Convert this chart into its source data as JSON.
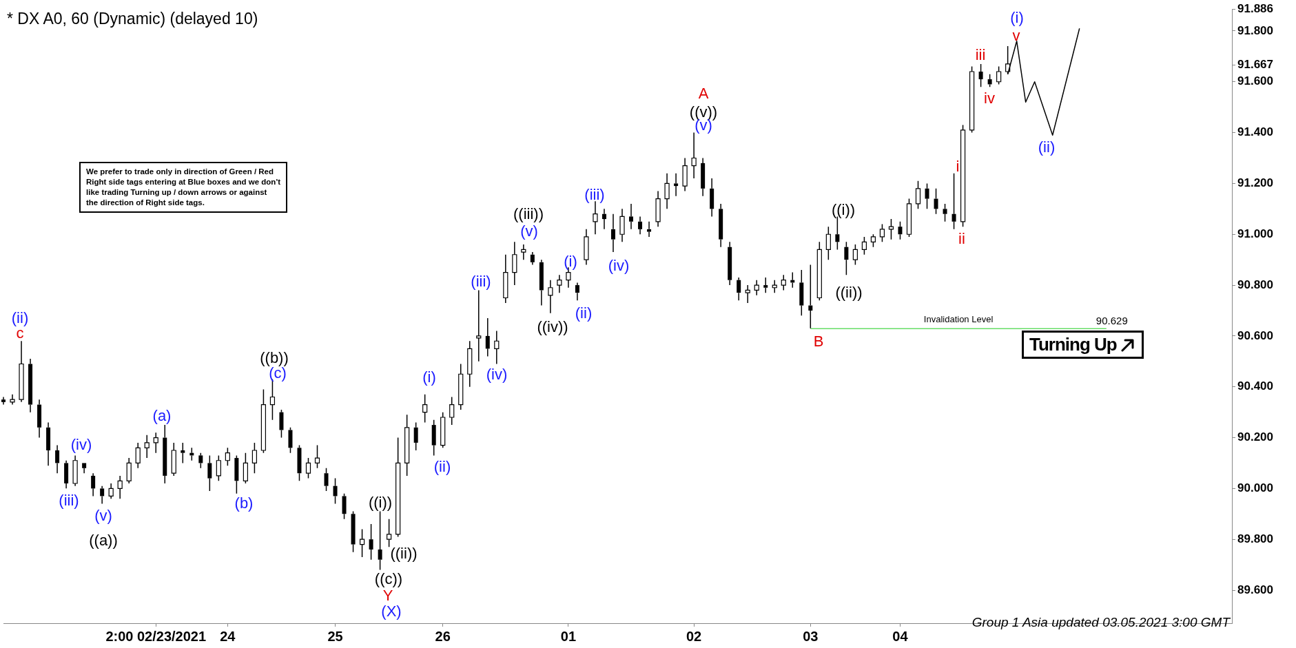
{
  "chart_data": {
    "type": "candlestick",
    "title": "* DX A0, 60 (Dynamic) (delayed 10)",
    "categories": [
      null,
      null,
      null,
      null,
      null,
      null,
      null,
      null,
      null,
      null,
      null,
      null,
      null,
      null,
      null,
      null,
      null,
      "2:00 02/23/2021",
      null,
      null,
      null,
      null,
      null,
      null,
      null,
      "24",
      null,
      null,
      null,
      null,
      null,
      null,
      null,
      null,
      null,
      null,
      null,
      "25",
      null,
      null,
      null,
      null,
      null,
      null,
      null,
      null,
      null,
      null,
      null,
      "26",
      null,
      null,
      null,
      null,
      null,
      null,
      null,
      null,
      null,
      null,
      null,
      null,
      null,
      "01",
      null,
      null,
      null,
      null,
      null,
      null,
      null,
      null,
      null,
      null,
      null,
      null,
      null,
      "02",
      null,
      null,
      null,
      null,
      null,
      null,
      null,
      null,
      null,
      null,
      null,
      null,
      "03",
      null,
      null,
      null,
      null,
      null,
      null,
      null,
      null,
      null,
      "04",
      null,
      null,
      null,
      null,
      null,
      null,
      null,
      null,
      null,
      null,
      null,
      null,
      null,
      null,
      null,
      null,
      null,
      null,
      null,
      null,
      null,
      null,
      null,
      null,
      null,
      null,
      null,
      null,
      null,
      null,
      null,
      null,
      null,
      null,
      null,
      null,
      null
    ],
    "ylim": [
      89.47,
      91.886
    ],
    "yticks": [
      {
        "value": 89.6,
        "label": "89.600"
      },
      {
        "value": 89.8,
        "label": "89.800"
      },
      {
        "value": 90,
        "label": "90.000"
      },
      {
        "value": 90.2,
        "label": "90.200"
      },
      {
        "value": 90.4,
        "label": "90.400"
      },
      {
        "value": 90.6,
        "label": "90.600"
      },
      {
        "value": 90.8,
        "label": "90.800"
      },
      {
        "value": 91,
        "label": "91.000"
      },
      {
        "value": 91.2,
        "label": "91.200"
      },
      {
        "value": 91.4,
        "label": "91.400"
      },
      {
        "value": 91.6,
        "label": "91.600"
      },
      {
        "value": 91.667,
        "label": "91.667"
      },
      {
        "value": 91.8,
        "label": "91.800"
      },
      {
        "value": 91.886,
        "label": "91.886"
      }
    ],
    "series": [
      {
        "color": "#000000",
        "ohlc": [
          [
            90.35,
            90.36,
            90.33,
            90.34
          ],
          [
            90.34,
            90.37,
            90.33,
            90.35
          ],
          [
            90.35,
            90.58,
            90.34,
            90.49
          ],
          [
            90.49,
            90.51,
            90.3,
            90.33
          ],
          [
            90.33,
            90.35,
            90.2,
            90.24
          ],
          [
            90.24,
            90.26,
            90.09,
            90.15
          ],
          [
            90.15,
            90.17,
            90.06,
            90.1
          ],
          [
            90.1,
            90.11,
            90,
            90.02
          ],
          [
            90.02,
            90.13,
            90.01,
            90.11
          ],
          [
            90.1,
            90.1,
            90.06,
            90.08
          ],
          [
            90.05,
            90.06,
            89.97,
            90
          ],
          [
            90,
            90.01,
            89.94,
            89.97
          ],
          [
            89.97,
            90.02,
            89.96,
            90
          ],
          [
            90,
            90.05,
            89.96,
            90.03
          ],
          [
            90.03,
            90.12,
            90.02,
            90.1
          ],
          [
            90.1,
            90.18,
            90.08,
            90.16
          ],
          [
            90.16,
            90.21,
            90.12,
            90.18
          ],
          [
            90.18,
            90.22,
            90.14,
            90.2
          ],
          [
            90.2,
            90.25,
            90.02,
            90.05
          ],
          [
            90.06,
            90.18,
            90.05,
            90.15
          ],
          [
            90.15,
            90.18,
            90.1,
            90.14
          ],
          [
            90.14,
            90.16,
            90.11,
            90.13
          ],
          [
            90.13,
            90.14,
            90.08,
            90.1
          ],
          [
            90.1,
            90.13,
            89.99,
            90.04
          ],
          [
            90.05,
            90.13,
            90.03,
            90.11
          ],
          [
            90.11,
            90.16,
            90.09,
            90.14
          ],
          [
            90.12,
            90.13,
            89.98,
            90.03
          ],
          [
            90.03,
            90.14,
            90.02,
            90.1
          ],
          [
            90.1,
            90.18,
            90.06,
            90.15
          ],
          [
            90.15,
            90.39,
            90.14,
            90.33
          ],
          [
            90.33,
            90.43,
            90.27,
            90.36
          ],
          [
            90.3,
            90.31,
            90.2,
            90.23
          ],
          [
            90.23,
            90.24,
            90.14,
            90.16
          ],
          [
            90.16,
            90.17,
            90.03,
            90.06
          ],
          [
            90.06,
            90.12,
            90.04,
            90.1
          ],
          [
            90.1,
            90.17,
            90.08,
            90.12
          ],
          [
            90.06,
            90.08,
            89.99,
            90.01
          ],
          [
            90.01,
            90.04,
            89.94,
            89.97
          ],
          [
            89.97,
            89.98,
            89.88,
            89.9
          ],
          [
            89.9,
            89.91,
            89.75,
            89.78
          ],
          [
            89.78,
            89.84,
            89.73,
            89.8
          ],
          [
            89.8,
            89.86,
            89.72,
            89.76
          ],
          [
            89.76,
            89.91,
            89.68,
            89.72
          ],
          [
            89.8,
            89.88,
            89.77,
            89.82
          ],
          [
            89.82,
            90.2,
            89.81,
            90.1
          ],
          [
            90.1,
            90.29,
            90.05,
            90.24
          ],
          [
            90.24,
            90.26,
            90.15,
            90.18
          ],
          [
            90.3,
            90.37,
            90.26,
            90.33
          ],
          [
            90.25,
            90.27,
            90.13,
            90.17
          ],
          [
            90.17,
            90.3,
            90.16,
            90.28
          ],
          [
            90.28,
            90.36,
            90.25,
            90.33
          ],
          [
            90.33,
            90.49,
            90.31,
            90.45
          ],
          [
            90.45,
            90.58,
            90.4,
            90.55
          ],
          [
            90.6,
            90.78,
            90.5,
            90.6
          ],
          [
            90.6,
            90.67,
            90.52,
            90.55
          ],
          [
            90.55,
            90.62,
            90.49,
            90.58
          ],
          [
            90.75,
            90.92,
            90.73,
            90.85
          ],
          [
            90.85,
            90.97,
            90.8,
            90.92
          ],
          [
            90.93,
            90.96,
            90.9,
            90.94
          ],
          [
            90.92,
            90.93,
            90.88,
            90.89
          ],
          [
            90.89,
            90.9,
            90.72,
            90.78
          ],
          [
            90.76,
            90.82,
            90.69,
            90.79
          ],
          [
            90.8,
            90.84,
            90.77,
            90.82
          ],
          [
            90.82,
            90.87,
            90.79,
            90.85
          ],
          [
            90.8,
            90.81,
            90.74,
            90.77
          ],
          [
            90.9,
            91.02,
            90.88,
            90.99
          ],
          [
            91.05,
            91.13,
            91,
            91.08
          ],
          [
            91.08,
            91.1,
            91.02,
            91.06
          ],
          [
            91.02,
            91.08,
            90.93,
            90.98
          ],
          [
            91,
            91.1,
            90.97,
            91.07
          ],
          [
            91.07,
            91.12,
            91.02,
            91.05
          ],
          [
            91.05,
            91.07,
            91,
            91.02
          ],
          [
            91.02,
            91.05,
            90.99,
            91.01
          ],
          [
            91.05,
            91.17,
            91.03,
            91.14
          ],
          [
            91.14,
            91.24,
            91.1,
            91.2
          ],
          [
            91.2,
            91.24,
            91.15,
            91.19
          ],
          [
            91.19,
            91.3,
            91.17,
            91.27
          ],
          [
            91.27,
            91.4,
            91.22,
            91.3
          ],
          [
            91.28,
            91.3,
            91.15,
            91.18
          ],
          [
            91.18,
            91.22,
            91.07,
            91.1
          ],
          [
            91.1,
            91.12,
            90.95,
            90.98
          ],
          [
            90.95,
            90.97,
            90.8,
            90.82
          ],
          [
            90.82,
            90.83,
            90.74,
            90.77
          ],
          [
            90.77,
            90.8,
            90.73,
            90.78
          ],
          [
            90.78,
            90.82,
            90.76,
            90.8
          ],
          [
            90.8,
            90.83,
            90.77,
            90.79
          ],
          [
            90.79,
            90.82,
            90.77,
            90.8
          ],
          [
            90.8,
            90.84,
            90.78,
            90.82
          ],
          [
            90.82,
            90.85,
            90.79,
            90.81
          ],
          [
            90.81,
            90.86,
            90.68,
            90.72
          ],
          [
            90.72,
            90.88,
            90.63,
            90.7
          ],
          [
            90.75,
            90.97,
            90.74,
            90.94
          ],
          [
            90.94,
            91.03,
            90.9,
            91
          ],
          [
            91,
            91.07,
            90.94,
            90.97
          ],
          [
            90.95,
            90.97,
            90.84,
            90.9
          ],
          [
            90.9,
            90.96,
            90.88,
            90.94
          ],
          [
            90.94,
            90.99,
            90.92,
            90.97
          ],
          [
            90.97,
            91,
            90.95,
            90.99
          ],
          [
            90.99,
            91.04,
            90.97,
            91.02
          ],
          [
            91.02,
            91.06,
            90.98,
            91.03
          ],
          [
            91.03,
            91.05,
            90.98,
            91
          ],
          [
            91,
            91.14,
            90.99,
            91.12
          ],
          [
            91.12,
            91.21,
            91.1,
            91.18
          ],
          [
            91.18,
            91.2,
            91.1,
            91.14
          ],
          [
            91.14,
            91.18,
            91.08,
            91.1
          ],
          [
            91.1,
            91.12,
            91.05,
            91.08
          ],
          [
            91.08,
            91.24,
            91.02,
            91.05
          ],
          [
            91.05,
            91.43,
            91.03,
            91.41
          ],
          [
            91.41,
            91.66,
            91.4,
            91.64
          ],
          [
            91.64,
            91.67,
            91.58,
            91.61
          ],
          [
            91.61,
            91.63,
            91.58,
            91.59
          ],
          [
            91.6,
            91.66,
            91.59,
            91.64
          ],
          [
            91.64,
            91.74,
            91.63,
            91.67
          ],
          null,
          null,
          null,
          null,
          null,
          null,
          null,
          null,
          null,
          null,
          null,
          null,
          null,
          null,
          null,
          null,
          null,
          null,
          null,
          null,
          null,
          null,
          null,
          null,
          null
        ]
      },
      {
        "type": "line",
        "color": "#000000",
        "values": [
          null,
          null,
          null,
          null,
          null,
          null,
          null,
          null,
          null,
          null,
          null,
          null,
          null,
          null,
          null,
          null,
          null,
          null,
          null,
          null,
          null,
          null,
          null,
          null,
          null,
          null,
          null,
          null,
          null,
          null,
          null,
          null,
          null,
          null,
          null,
          null,
          null,
          null,
          null,
          null,
          null,
          null,
          null,
          null,
          null,
          null,
          null,
          null,
          null,
          null,
          null,
          null,
          null,
          null,
          null,
          null,
          null,
          null,
          null,
          null,
          null,
          null,
          null,
          null,
          null,
          null,
          null,
          null,
          null,
          null,
          null,
          null,
          null,
          null,
          null,
          null,
          null,
          null,
          null,
          null,
          null,
          null,
          null,
          null,
          null,
          null,
          null,
          null,
          null,
          null,
          null,
          null,
          null,
          null,
          null,
          null,
          null,
          null,
          null,
          null,
          null,
          null,
          null,
          null,
          null,
          null,
          null,
          null,
          null,
          null,
          null,
          null,
          91.63,
          91.76,
          91.52,
          91.6,
          null,
          91.39,
          null,
          null,
          91.81,
          null,
          null,
          null,
          null,
          null,
          null,
          null,
          null,
          null,
          null,
          null,
          null,
          null,
          null,
          null,
          null,
          null
        ]
      },
      {
        "type": "line",
        "name": "Invalidation Level",
        "color": "#66dd66",
        "values": [
          null,
          null,
          null,
          null,
          null,
          null,
          null,
          null,
          null,
          null,
          null,
          null,
          null,
          null,
          null,
          null,
          null,
          null,
          null,
          null,
          null,
          null,
          null,
          null,
          null,
          null,
          null,
          null,
          null,
          null,
          null,
          null,
          null,
          null,
          null,
          null,
          null,
          null,
          null,
          null,
          null,
          null,
          null,
          null,
          null,
          null,
          null,
          null,
          null,
          null,
          null,
          null,
          null,
          null,
          null,
          null,
          null,
          null,
          null,
          null,
          null,
          null,
          null,
          null,
          null,
          null,
          null,
          null,
          null,
          null,
          null,
          null,
          null,
          null,
          null,
          null,
          null,
          null,
          null,
          null,
          null,
          null,
          null,
          null,
          null,
          null,
          null,
          null,
          null,
          null,
          90.629,
          null,
          null,
          null,
          null,
          null,
          null,
          null,
          null,
          null,
          null,
          null,
          null,
          null,
          null,
          null,
          null,
          null,
          null,
          null,
          null,
          null,
          null,
          null,
          null,
          null,
          null,
          null,
          null,
          null,
          null,
          null,
          null,
          90.629,
          null,
          null,
          null,
          null,
          null,
          null,
          null,
          null,
          null,
          null,
          null,
          null,
          null,
          null
        ],
        "value_labels": [
          null,
          null,
          null,
          null,
          null,
          null,
          null,
          null,
          null,
          null,
          null,
          null,
          null,
          null,
          null,
          null,
          null,
          null,
          null,
          null,
          null,
          null,
          null,
          null,
          null,
          null,
          null,
          null,
          null,
          null,
          null,
          null,
          null,
          null,
          null,
          null,
          null,
          null,
          null,
          null,
          null,
          null,
          null,
          null,
          null,
          null,
          null,
          null,
          null,
          null,
          null,
          null,
          null,
          null,
          null,
          null,
          null,
          null,
          null,
          null,
          null,
          null,
          null,
          null,
          null,
          null,
          null,
          null,
          null,
          null,
          null,
          null,
          null,
          null,
          null,
          null,
          null,
          null,
          null,
          null,
          null,
          null,
          null,
          null,
          null,
          null,
          null,
          null,
          null,
          null,
          null,
          null,
          null,
          null,
          null,
          null,
          null,
          null,
          null,
          null,
          null,
          null,
          null,
          null,
          null,
          null,
          null,
          null,
          null,
          null,
          null,
          null,
          null,
          null,
          null,
          null,
          null,
          null,
          null,
          null,
          null,
          null,
          null,
          "90.629",
          null,
          null,
          null,
          null,
          null,
          null,
          null,
          null,
          null,
          null,
          null,
          null,
          null,
          null
        ]
      }
    ],
    "annotations": [
      "(ii)",
      "c",
      "(iii)",
      "(iv)",
      "(v)",
      "((a))",
      "(a)",
      "(b)",
      "((b))",
      "(c)",
      "((i))",
      "((ii))",
      "((c))",
      "Y",
      "(X)",
      "(i)",
      "(ii)",
      "(iii)",
      "(iv)",
      "((iii))",
      "(v)",
      "(i)",
      "(ii)",
      "((iv))",
      "(iii)",
      "(iv)",
      "A",
      "((v))",
      "(v)",
      "B",
      "((i))",
      "((ii))",
      "i",
      "ii",
      "iii",
      "iv",
      "v",
      "(i)",
      "(ii)",
      "We prefer to trade only in direction of Green / Red\nRight side tags entering at Blue boxes and we don't\nlike trading Turning up / down arrows or against\nthe direction of Right side tags.",
      "Turning Up",
      "Group 1 Asia updated 03.05.2021 3:00 GMT"
    ]
  }
}
